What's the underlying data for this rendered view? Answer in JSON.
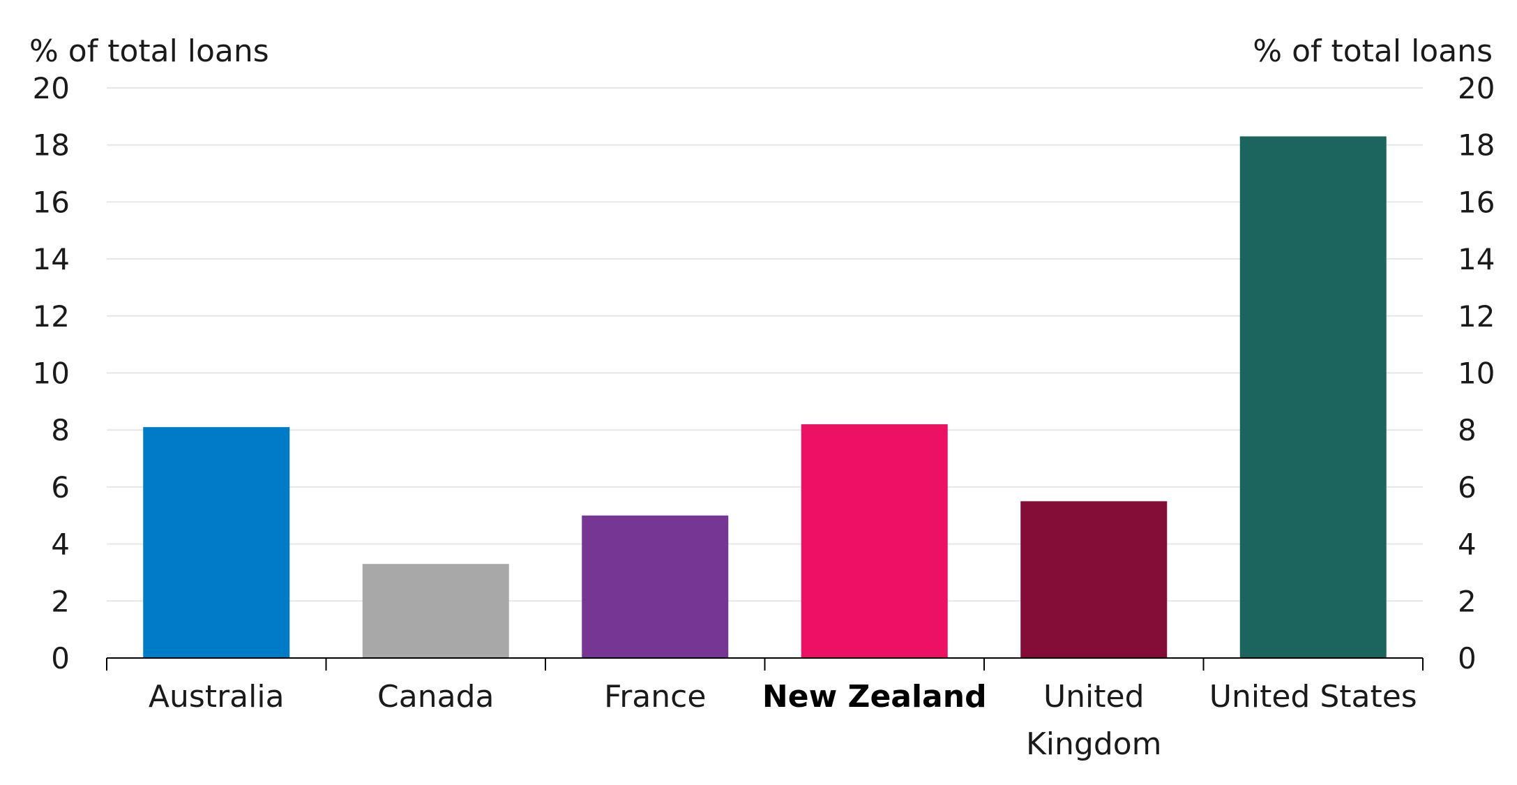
{
  "chart_data": {
    "type": "bar",
    "left_axis_title": "% of total loans",
    "right_axis_title": "% of total loans",
    "ylim": [
      0,
      20
    ],
    "yticks": [
      "0",
      "2",
      "4",
      "6",
      "8",
      "10",
      "12",
      "14",
      "16",
      "18",
      "20"
    ],
    "grid": true,
    "categories": [
      {
        "label": [
          "Australia"
        ],
        "value": 8.1,
        "color": "#007BC7",
        "bold": false
      },
      {
        "label": [
          "Canada"
        ],
        "value": 3.3,
        "color": "#A8A8A8",
        "bold": false
      },
      {
        "label": [
          "France"
        ],
        "value": 5.0,
        "color": "#763794",
        "bold": false
      },
      {
        "label": [
          "New Zealand"
        ],
        "value": 8.2,
        "color": "#ED1164",
        "bold": true
      },
      {
        "label": [
          "United",
          "Kingdom"
        ],
        "value": 5.5,
        "color": "#830D37",
        "bold": false
      },
      {
        "label": [
          "United States"
        ],
        "value": 18.3,
        "color": "#1C655E",
        "bold": false
      }
    ]
  }
}
